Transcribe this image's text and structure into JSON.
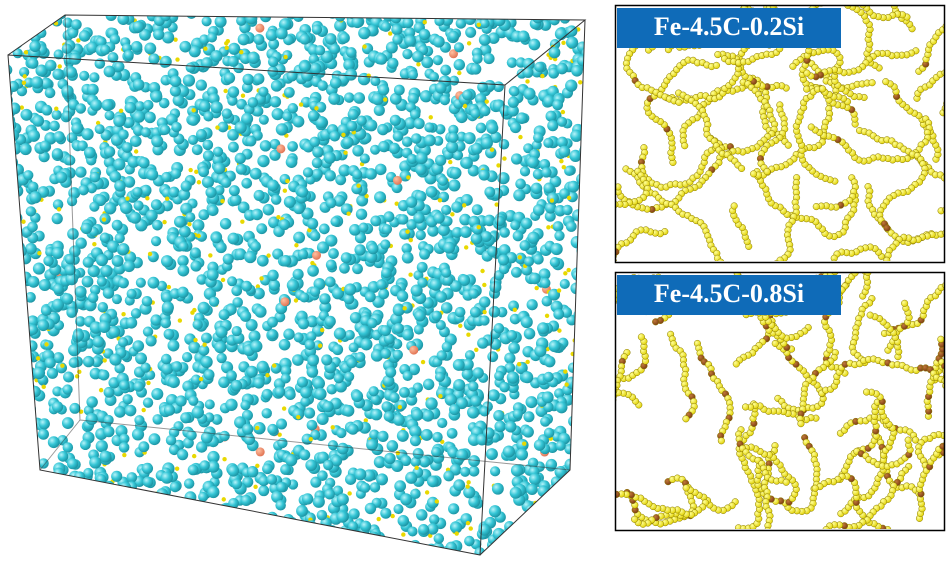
{
  "panels": [
    {
      "label": "Fe-4.5C-0.2Si"
    },
    {
      "label": "Fe-4.5C-0.8Si"
    }
  ]
}
